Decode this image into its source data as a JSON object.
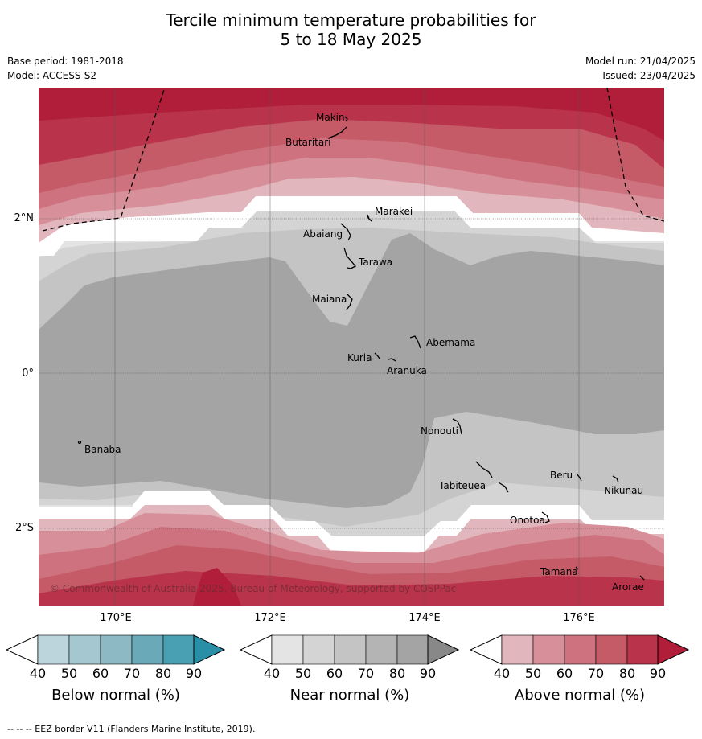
{
  "title_line1": "Tercile minimum temperature probabilities for",
  "title_line2": "5 to 18 May 2025",
  "base_period": "Base period: 1981-2018",
  "model": "Model: ACCESS-S2",
  "model_run": "Model run: 21/04/2025",
  "issued": "Issued: 23/04/2025",
  "copyright": "© Commonwealth of Australia 2025, Bureau of Meteorology, supported by COSPPac",
  "lon_labels": [
    "170°E",
    "172°E",
    "174°E",
    "176°E"
  ],
  "lat_labels": [
    "2°N",
    "0°",
    "2°S"
  ],
  "places": [
    {
      "name": "Makin"
    },
    {
      "name": "Butaritari"
    },
    {
      "name": "Marakei"
    },
    {
      "name": "Abaiang"
    },
    {
      "name": "Tarawa"
    },
    {
      "name": "Maiana"
    },
    {
      "name": "Abemama"
    },
    {
      "name": "Kuria"
    },
    {
      "name": "Aranuka"
    },
    {
      "name": "Nonouti"
    },
    {
      "name": "Banaba"
    },
    {
      "name": "Beru"
    },
    {
      "name": "Tabiteuea"
    },
    {
      "name": "Nikunau"
    },
    {
      "name": "Onotoa"
    },
    {
      "name": "Tamana"
    },
    {
      "name": "Arorae"
    }
  ],
  "colorbars": [
    {
      "title": "Below normal (%)",
      "colors": [
        "#ffffff",
        "#bcd4dc",
        "#a5c7d0",
        "#8cb9c4",
        "#6aa9b8",
        "#48a0b2",
        "#2a8fa6"
      ]
    },
    {
      "title": "Near normal (%)",
      "colors": [
        "#ffffff",
        "#e4e4e4",
        "#d4d4d4",
        "#c4c4c4",
        "#b4b4b4",
        "#a4a4a4",
        "#888888"
      ]
    },
    {
      "title": "Above normal (%)",
      "colors": [
        "#ffffff",
        "#e1b6bd",
        "#d78f99",
        "#cd727e",
        "#c45b67",
        "#b9344a",
        "#b01e3a"
      ]
    }
  ],
  "tick_labels": [
    "40",
    "50",
    "60",
    "70",
    "80",
    "90"
  ],
  "footer": "--  --  -- EEZ border V11 (Flanders Marine Institute, 2019).",
  "colors": {
    "above_90": "#b01e3a",
    "above_80": "#b9344a",
    "above_70": "#c45b67",
    "above_60": "#cd727e",
    "above_50": "#d78f99",
    "above_40": "#e1b6bd",
    "near_40": "#e4e4e4",
    "near_50": "#d4d4d4",
    "near_60": "#c4c4c4",
    "near_70": "#a4a4a4"
  }
}
